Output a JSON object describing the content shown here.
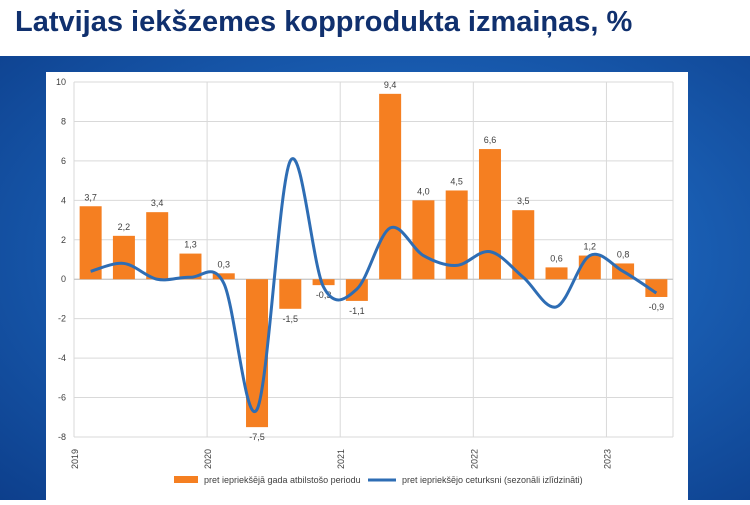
{
  "title": "Latvijas iekšzemes kopprodukta izmaiņas, %",
  "chart_data": {
    "type": "bar",
    "ylim": [
      -8,
      10
    ],
    "yticks": [
      "10",
      "8",
      "6",
      "4",
      "2",
      "0",
      "-2",
      "-4",
      "-6",
      "-8"
    ],
    "year_labels": [
      "2019",
      "2020",
      "2021",
      "2022",
      "2023"
    ],
    "grid": true,
    "legend_position": "bottom",
    "series": [
      {
        "name": "pret iepriekšējā gada atbilstošo periodu",
        "kind": "bar",
        "color": "#f57f21",
        "values": [
          3.7,
          2.2,
          3.4,
          1.3,
          0.3,
          -7.5,
          -1.5,
          -0.3,
          -1.1,
          9.4,
          4.0,
          4.5,
          6.6,
          3.5,
          0.6,
          1.2,
          0.8,
          -0.9
        ],
        "labels": [
          "3,7",
          "2,2",
          "3,4",
          "1,3",
          "0,3",
          "-7,5",
          "-1,5",
          "-0,3",
          "-1,1",
          "9,4",
          "4,0",
          "4,5",
          "6,6",
          "3,5",
          "0,6",
          "1,2",
          "0,8",
          "-0,9"
        ]
      },
      {
        "name": "pret iepriekšējo ceturksni (sezonāli izlīdzināti)",
        "kind": "line",
        "color": "#2e6db4",
        "values": [
          0.4,
          0.8,
          0.0,
          0.1,
          -0.2,
          -6.6,
          6.0,
          -0.4,
          -0.5,
          2.6,
          1.2,
          0.7,
          1.4,
          0.1,
          -1.4,
          1.2,
          0.4,
          -0.7
        ]
      }
    ]
  }
}
